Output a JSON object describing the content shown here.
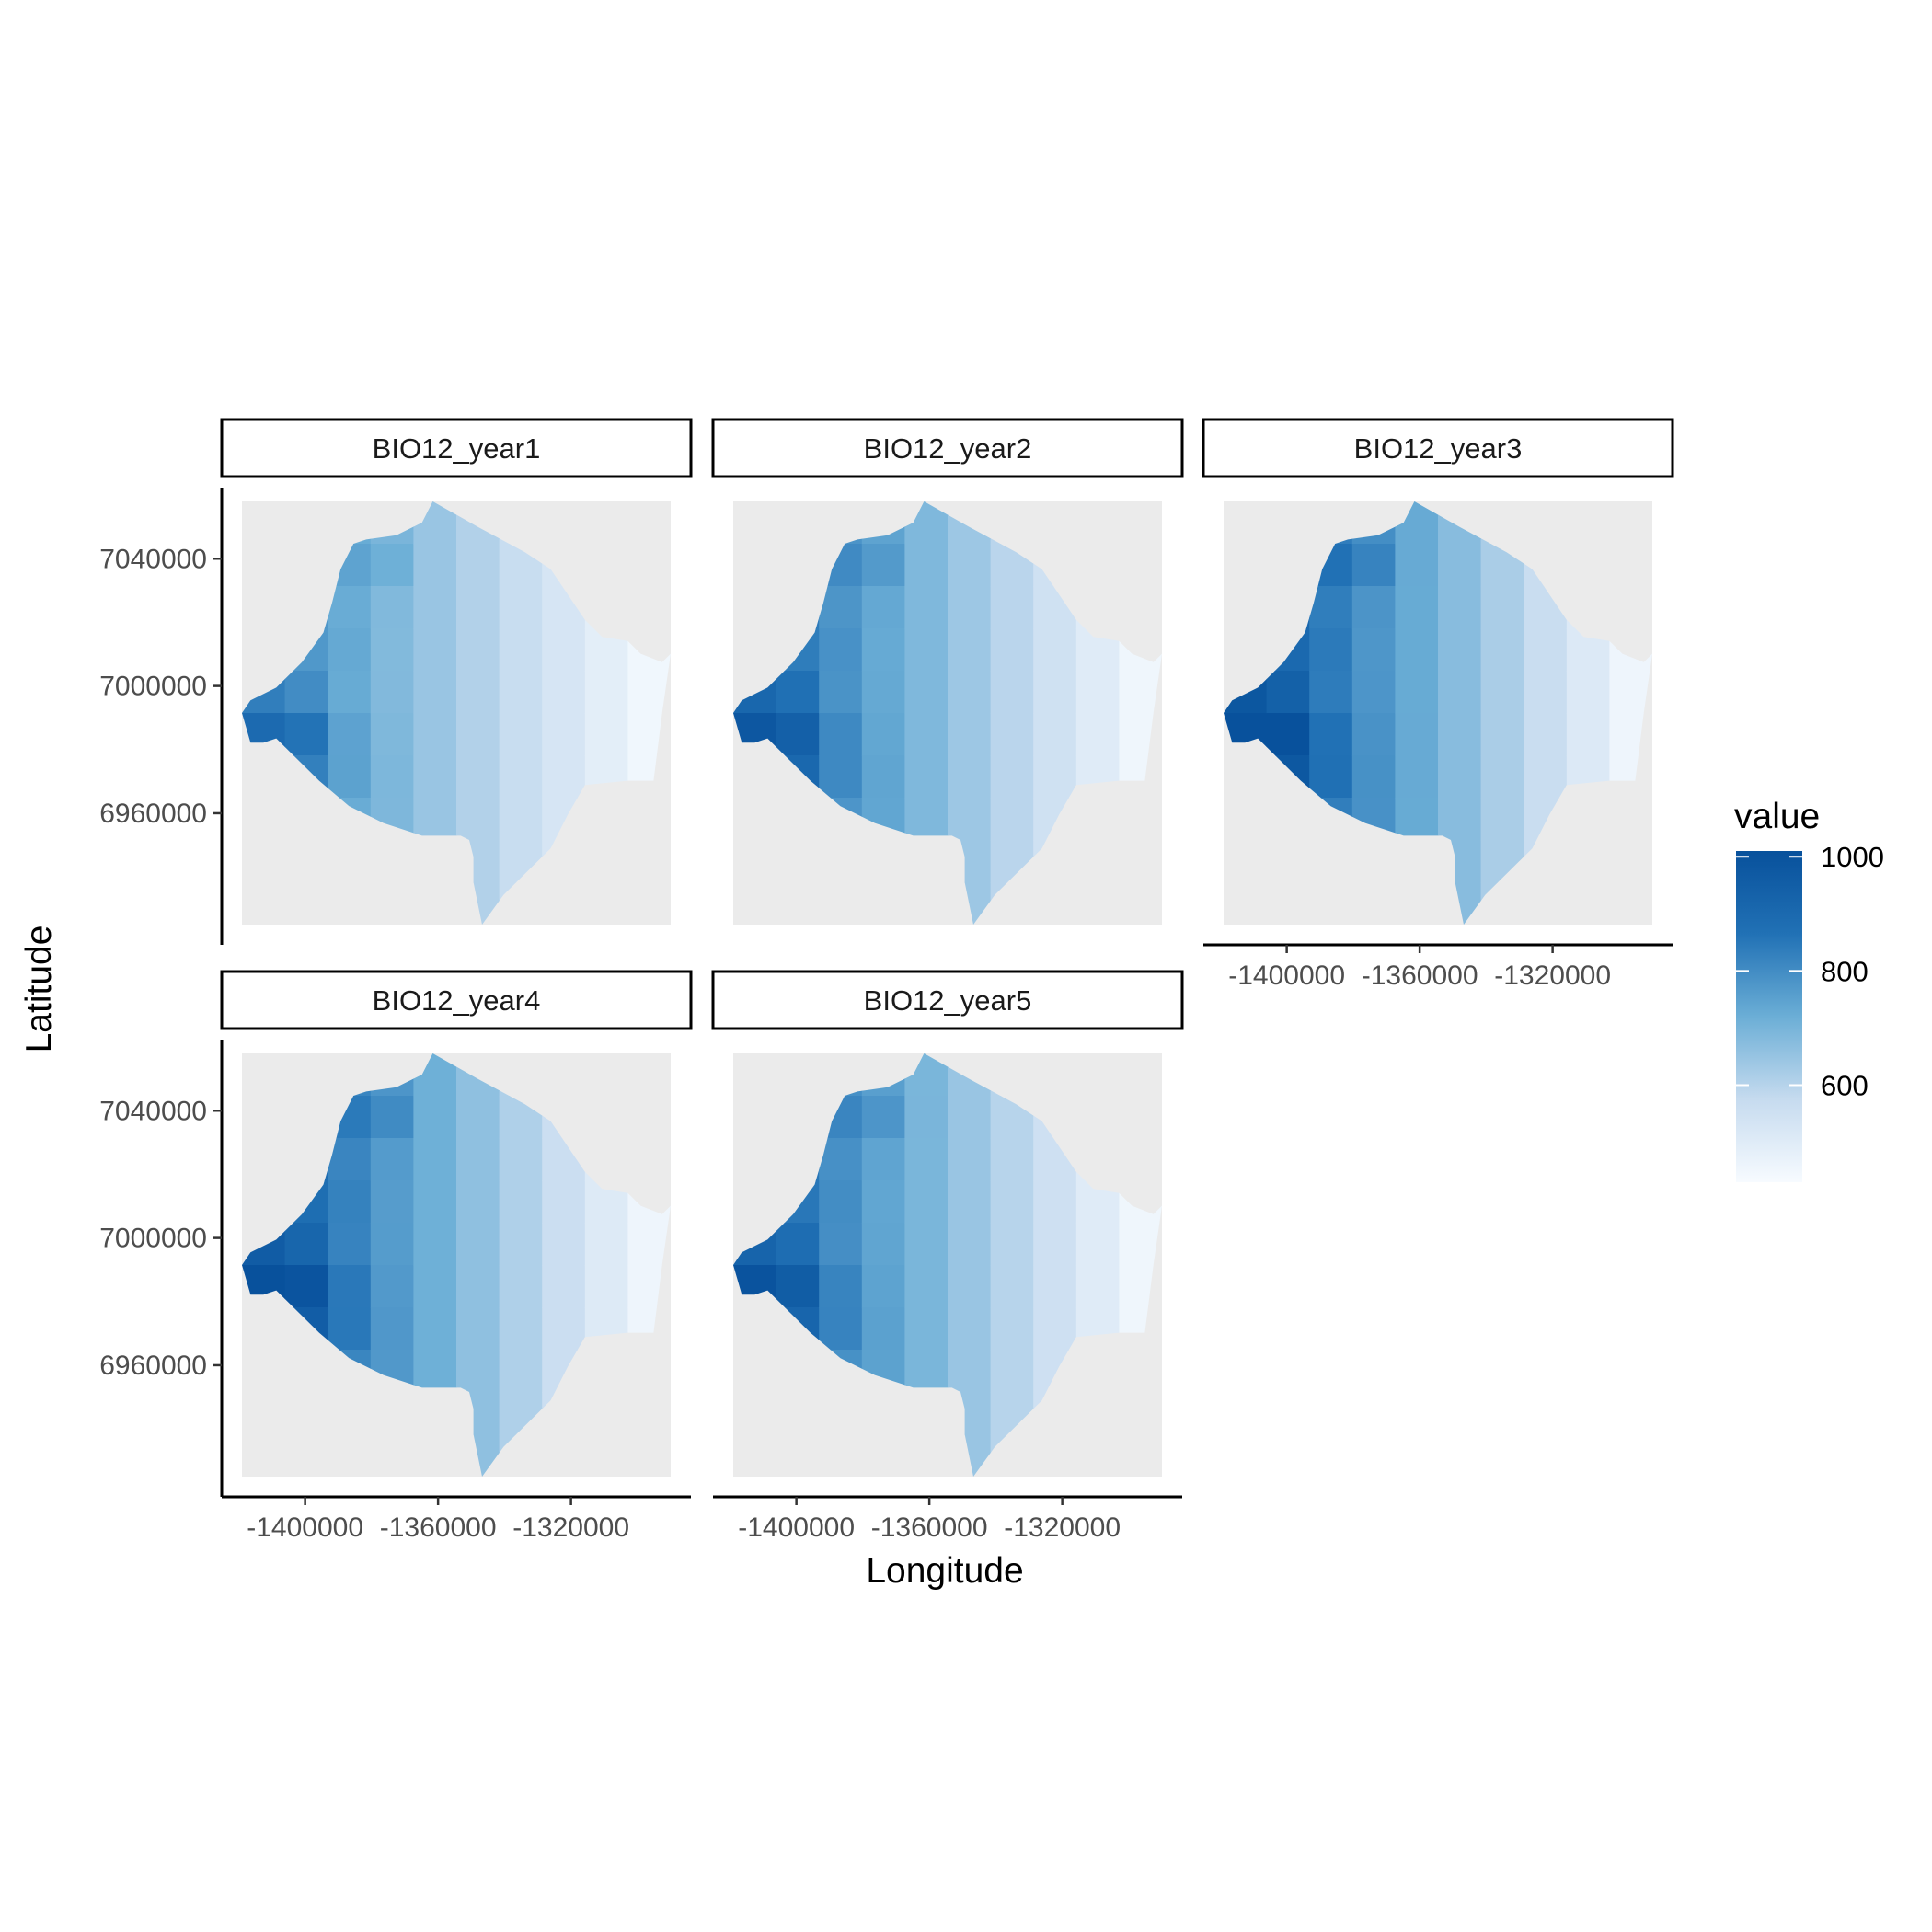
{
  "chart_data": {
    "type": "heatmap",
    "xlabel": "Longitude",
    "ylabel": "Latitude",
    "x_ticks": [
      -1400000,
      -1360000,
      -1320000
    ],
    "x_tick_labels": [
      "-1400000",
      "-1360000",
      "-1320000"
    ],
    "y_ticks": [
      6960000,
      7000000,
      7040000
    ],
    "y_tick_labels": [
      "6960000",
      "7000000",
      "7040000"
    ],
    "xlim": [
      -1419000,
      -1290000
    ],
    "ylim": [
      6925000,
      7058000
    ],
    "legend": {
      "title": "value",
      "placement": "right",
      "ticks": [
        600,
        800,
        1000
      ],
      "tick_labels": [
        "600",
        "800",
        "1000"
      ],
      "range": [
        430,
        1010
      ],
      "low_color": "#f7fbff",
      "high_color": "#08519c"
    },
    "panels": [
      {
        "name": "BIO12_year1",
        "intensity": 0.8
      },
      {
        "name": "BIO12_year2",
        "intensity": 0.95
      },
      {
        "name": "BIO12_year3",
        "intensity": 1.1
      },
      {
        "name": "BIO12_year4",
        "intensity": 1.05
      },
      {
        "name": "BIO12_year5",
        "intensity": 0.98
      }
    ]
  },
  "colors": {
    "panel_background": "#ebebeb",
    "strip_border": "#000000"
  }
}
